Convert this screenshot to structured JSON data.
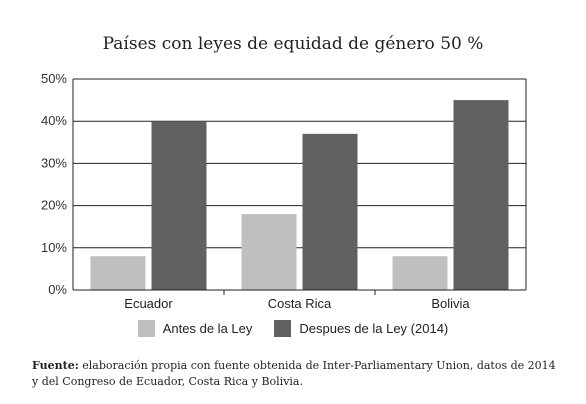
{
  "chart_data": {
    "type": "bar",
    "title": "Países con leyes de equidad de género 50 %",
    "categories": [
      "Ecuador",
      "Costa Rica",
      "Bolivia"
    ],
    "series": [
      {
        "name": "Antes de la Ley",
        "values": [
          8,
          18,
          8
        ],
        "color": "#bfbfc1"
      },
      {
        "name": "Despues de la Ley (2014)",
        "values": [
          40,
          37,
          45
        ],
        "color": "#616161"
      }
    ],
    "y_ticks": [
      "0%",
      "10%",
      "20%",
      "30%",
      "40%",
      "50%"
    ],
    "ylim": [
      0,
      50
    ],
    "grid": true,
    "legend": "bottom"
  },
  "source": {
    "label": "Fuente:",
    "text": "elaboración propia con fuente obtenida de Inter-Parliamentary Union, datos de 2014 y del Congreso de Ecuador, Costa Rica y Bolivia."
  }
}
